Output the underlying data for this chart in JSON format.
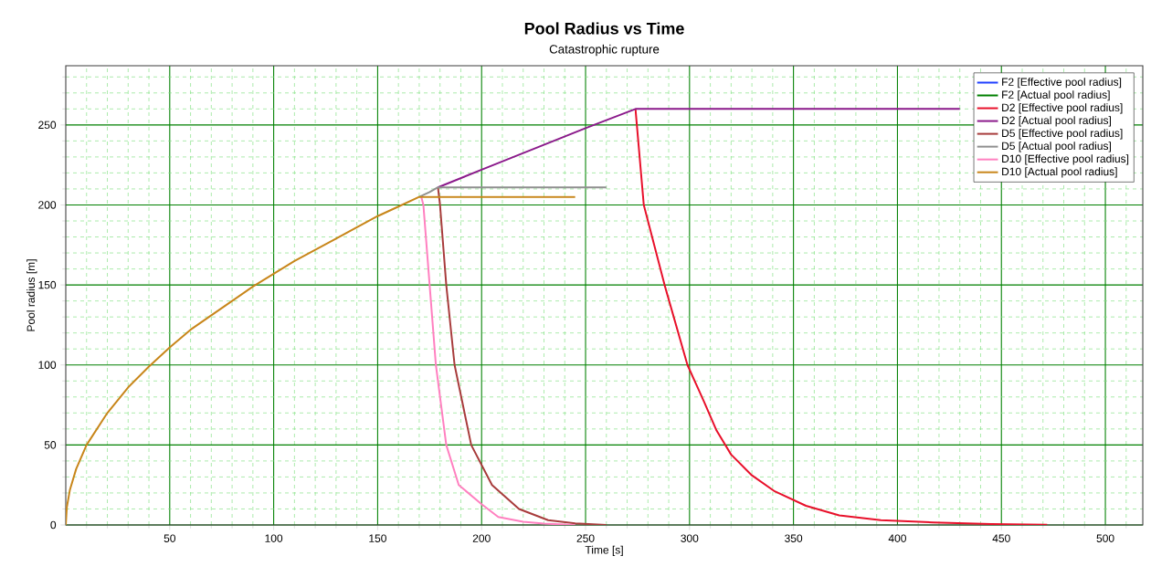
{
  "chart_data": {
    "type": "line",
    "title": "Pool Radius vs Time",
    "subtitle": "Catastrophic rupture",
    "xlabel": "Time [s]",
    "ylabel": "Pool radius [m]",
    "xlim": [
      0,
      518
    ],
    "ylim": [
      0,
      287
    ],
    "xticks": [
      {
        "value": 10,
        "label": null
      },
      {
        "value": 20,
        "label": null
      },
      {
        "value": 30,
        "label": null
      },
      {
        "value": 40,
        "label": null
      },
      50,
      {
        "value": 60,
        "label": null
      },
      {
        "value": 70,
        "label": null
      },
      {
        "value": 80,
        "label": null
      },
      {
        "value": 90,
        "label": null
      },
      100,
      {
        "value": 110,
        "label": null
      },
      {
        "value": 120,
        "label": null
      },
      {
        "value": 130,
        "label": null
      },
      {
        "value": 140,
        "label": null
      },
      150,
      {
        "value": 160,
        "label": null
      },
      {
        "value": 170,
        "label": null
      },
      {
        "value": 180,
        "label": null
      },
      {
        "value": 190,
        "label": null
      },
      200,
      {
        "value": 210,
        "label": null
      },
      {
        "value": 220,
        "label": null
      },
      {
        "value": 230,
        "label": null
      },
      {
        "value": 240,
        "label": null
      },
      250,
      {
        "value": 260,
        "label": null
      },
      {
        "value": 270,
        "label": null
      },
      {
        "value": 280,
        "label": null
      },
      {
        "value": 290,
        "label": null
      },
      300,
      {
        "value": 310,
        "label": null
      },
      {
        "value": 320,
        "label": null
      },
      {
        "value": 330,
        "label": null
      },
      {
        "value": 340,
        "label": null
      },
      350,
      {
        "value": 360,
        "label": null
      },
      {
        "value": 370,
        "label": null
      },
      {
        "value": 380,
        "label": null
      },
      {
        "value": 390,
        "label": null
      },
      400,
      {
        "value": 410,
        "label": null
      },
      {
        "value": 420,
        "label": null
      },
      {
        "value": 430,
        "label": null
      },
      {
        "value": 440,
        "label": null
      },
      450,
      {
        "value": 460,
        "label": null
      },
      {
        "value": 470,
        "label": null
      },
      {
        "value": 480,
        "label": null
      },
      {
        "value": 490,
        "label": null
      },
      500,
      {
        "value": 510,
        "label": null
      }
    ],
    "yticks": [
      0,
      {
        "value": 10,
        "label": null
      },
      {
        "value": 20,
        "label": null
      },
      {
        "value": 30,
        "label": null
      },
      {
        "value": 40,
        "label": null
      },
      50,
      {
        "value": 60,
        "label": null
      },
      {
        "value": 70,
        "label": null
      },
      {
        "value": 80,
        "label": null
      },
      {
        "value": 90,
        "label": null
      },
      100,
      {
        "value": 110,
        "label": null
      },
      {
        "value": 120,
        "label": null
      },
      {
        "value": 130,
        "label": null
      },
      {
        "value": 140,
        "label": null
      },
      150,
      {
        "value": 160,
        "label": null
      },
      {
        "value": 170,
        "label": null
      },
      {
        "value": 180,
        "label": null
      },
      {
        "value": 190,
        "label": null
      },
      200,
      {
        "value": 210,
        "label": null
      },
      {
        "value": 220,
        "label": null
      },
      {
        "value": 230,
        "label": null
      },
      {
        "value": 240,
        "label": null
      },
      250,
      {
        "value": 260,
        "label": null
      },
      {
        "value": 270,
        "label": null
      },
      {
        "value": 280,
        "label": null
      }
    ],
    "grid": true,
    "legend": "top right",
    "marker": "none",
    "line_style": "solid",
    "series": [
      {
        "name": "F2 [Effective pool radius]",
        "color": "#1f3fff"
      },
      {
        "name": "F2 [Actual pool radius]",
        "color": "#008000"
      },
      {
        "name": "D2 [Effective pool radius]",
        "color": "#e8102a",
        "x": [
          274,
          278,
          288,
          299,
          307,
          313,
          320,
          330,
          341,
          356,
          372,
          392,
          417,
          445,
          472
        ],
        "values": [
          260,
          200,
          150,
          100,
          77,
          59,
          44,
          31,
          21,
          12,
          6,
          3,
          1.6,
          0.6,
          0.2
        ]
      },
      {
        "name": "D2 [Actual pool radius]",
        "color": "#8b1a8b",
        "x": [
          179,
          200,
          250,
          274,
          430
        ],
        "values": [
          211,
          222,
          248,
          260,
          260
        ]
      },
      {
        "name": "D5 [Effective pool radius]",
        "color": "#a83c3c",
        "x": [
          179,
          180,
          183,
          187,
          195,
          205,
          218,
          232,
          245,
          260
        ],
        "values": [
          211,
          200,
          150,
          100,
          50,
          25,
          10,
          3,
          1,
          0
        ]
      },
      {
        "name": "D5 [Actual pool radius]",
        "color": "#909090",
        "x": [
          170,
          175,
          179,
          260
        ],
        "values": [
          205,
          208,
          211,
          211
        ]
      },
      {
        "name": "D10 [Effective pool radius]",
        "color": "#ff80c0",
        "x": [
          171,
          172,
          175,
          178,
          183,
          189,
          200,
          208,
          220,
          230,
          245
        ],
        "values": [
          205,
          200,
          150,
          100,
          50,
          25,
          13,
          5,
          2,
          0.8,
          0
        ]
      },
      {
        "name": "D10 [Actual pool radius]",
        "color": "#c8861a",
        "x": [
          0,
          0.5,
          2,
          5,
          10,
          20,
          30,
          40,
          50,
          60,
          70,
          80,
          90,
          100,
          110,
          120,
          130,
          140,
          150,
          160,
          170,
          171,
          245
        ],
        "values": [
          0,
          11,
          22,
          35,
          50,
          70,
          86,
          99,
          111,
          122,
          131,
          140,
          149,
          157,
          165,
          172,
          179,
          186,
          193,
          199,
          205,
          205,
          205
        ]
      }
    ]
  }
}
